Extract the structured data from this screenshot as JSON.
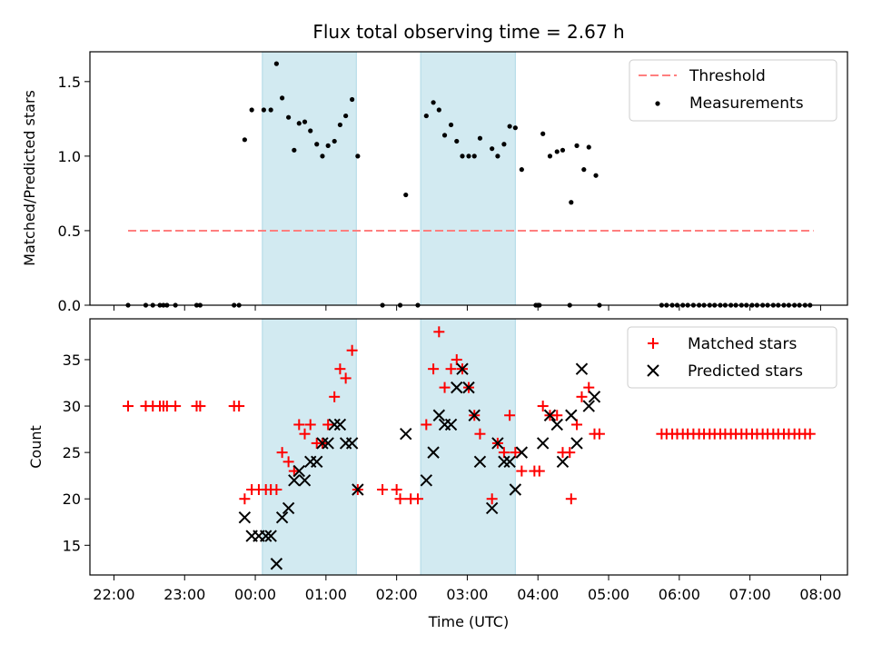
{
  "title": "Flux total observing time = 2.67 h",
  "colors": {
    "threshold": "#ff7f7f",
    "measurement": "#000000",
    "matched": "#ff0000",
    "predicted": "#000000",
    "shade": "#add8e6"
  },
  "chart_data": [
    {
      "type": "scatter",
      "ylabel": "Matched/Predicted stars",
      "ylim": [
        0,
        1.7
      ],
      "yticks": [
        0.0,
        0.5,
        1.0,
        1.5
      ],
      "ytick_labels": [
        "0.0",
        "0.5",
        "1.0",
        "1.5"
      ],
      "xlim": [
        21.66,
        32.38
      ],
      "legend_placement": "top-right",
      "legend": [
        "Threshold",
        "Measurements"
      ],
      "threshold": {
        "name": "Threshold",
        "y": 0.5,
        "x_start": 22.2,
        "x_end": 31.9
      },
      "shaded_spans": [
        [
          24.1,
          25.43
        ],
        [
          26.34,
          27.68
        ]
      ],
      "series": [
        {
          "name": "Measurements",
          "points": [
            [
              22.2,
              0
            ],
            [
              22.45,
              0
            ],
            [
              22.55,
              0
            ],
            [
              22.65,
              0
            ],
            [
              22.7,
              0
            ],
            [
              22.75,
              0
            ],
            [
              22.87,
              0
            ],
            [
              23.17,
              0
            ],
            [
              23.22,
              0
            ],
            [
              23.7,
              0
            ],
            [
              23.77,
              0
            ],
            [
              23.85,
              1.11
            ],
            [
              23.95,
              1.31
            ],
            [
              24.12,
              1.31
            ],
            [
              24.22,
              1.31
            ],
            [
              24.3,
              1.62
            ],
            [
              24.38,
              1.39
            ],
            [
              24.47,
              1.26
            ],
            [
              24.55,
              1.04
            ],
            [
              24.62,
              1.22
            ],
            [
              24.7,
              1.23
            ],
            [
              24.78,
              1.17
            ],
            [
              24.87,
              1.08
            ],
            [
              24.95,
              1.0
            ],
            [
              25.03,
              1.07
            ],
            [
              25.12,
              1.1
            ],
            [
              25.2,
              1.21
            ],
            [
              25.28,
              1.27
            ],
            [
              25.37,
              1.38
            ],
            [
              25.45,
              1.0
            ],
            [
              25.8,
              0
            ],
            [
              26.05,
              0
            ],
            [
              26.13,
              0.74
            ],
            [
              26.3,
              0
            ],
            [
              26.42,
              1.27
            ],
            [
              26.52,
              1.36
            ],
            [
              26.6,
              1.31
            ],
            [
              26.68,
              1.14
            ],
            [
              26.77,
              1.21
            ],
            [
              26.85,
              1.1
            ],
            [
              26.93,
              1.0
            ],
            [
              27.02,
              1.0
            ],
            [
              27.1,
              1.0
            ],
            [
              27.18,
              1.12
            ],
            [
              27.35,
              1.05
            ],
            [
              27.43,
              1.0
            ],
            [
              27.52,
              1.08
            ],
            [
              27.6,
              1.2
            ],
            [
              27.68,
              1.19
            ],
            [
              27.77,
              0.91
            ],
            [
              27.97,
              0
            ],
            [
              28.02,
              0
            ],
            [
              28.0,
              0
            ],
            [
              28.07,
              1.15
            ],
            [
              28.17,
              1.0
            ],
            [
              28.27,
              1.03
            ],
            [
              28.35,
              1.04
            ],
            [
              28.45,
              0
            ],
            [
              28.47,
              0.69
            ],
            [
              28.55,
              1.07
            ],
            [
              28.65,
              0.91
            ],
            [
              28.72,
              1.06
            ],
            [
              28.82,
              0.87
            ],
            [
              28.87,
              0
            ],
            [
              29.75,
              0
            ],
            [
              29.82,
              0
            ],
            [
              29.9,
              0
            ],
            [
              29.97,
              0
            ],
            [
              30.05,
              0
            ],
            [
              30.12,
              0
            ],
            [
              30.2,
              0
            ],
            [
              30.28,
              0
            ],
            [
              30.35,
              0
            ],
            [
              30.43,
              0
            ],
            [
              30.5,
              0
            ],
            [
              30.58,
              0
            ],
            [
              30.65,
              0
            ],
            [
              30.73,
              0
            ],
            [
              30.8,
              0
            ],
            [
              30.88,
              0
            ],
            [
              30.95,
              0
            ],
            [
              31.03,
              0
            ],
            [
              31.1,
              0
            ],
            [
              31.18,
              0
            ],
            [
              31.25,
              0
            ],
            [
              31.33,
              0
            ],
            [
              31.4,
              0
            ],
            [
              31.48,
              0
            ],
            [
              31.55,
              0
            ],
            [
              31.63,
              0
            ],
            [
              31.7,
              0
            ],
            [
              31.78,
              0
            ],
            [
              31.85,
              0
            ]
          ]
        }
      ]
    },
    {
      "type": "scatter",
      "ylabel": "Count",
      "xlabel": "Time (UTC)",
      "ylim": [
        11.8,
        39.4
      ],
      "yticks": [
        15,
        20,
        25,
        30,
        35
      ],
      "ytick_labels": [
        "15",
        "20",
        "25",
        "30",
        "35"
      ],
      "xlim": [
        21.66,
        32.38
      ],
      "xticks": [
        22,
        23,
        24,
        25,
        26,
        27,
        28,
        29,
        30,
        31,
        32
      ],
      "xtick_labels": [
        "22:00",
        "23:00",
        "00:00",
        "01:00",
        "02:00",
        "03:00",
        "04:00",
        "05:00",
        "06:00",
        "07:00",
        "08:00"
      ],
      "legend_placement": "top-right",
      "legend": [
        "Matched stars",
        "Predicted stars"
      ],
      "shaded_spans": [
        [
          24.1,
          25.43
        ],
        [
          26.34,
          27.68
        ]
      ],
      "series": [
        {
          "name": "Matched stars",
          "points": [
            [
              22.2,
              30
            ],
            [
              22.45,
              30
            ],
            [
              22.55,
              30
            ],
            [
              22.65,
              30
            ],
            [
              22.7,
              30
            ],
            [
              22.75,
              30
            ],
            [
              22.87,
              30
            ],
            [
              23.17,
              30
            ],
            [
              23.22,
              30
            ],
            [
              23.7,
              30
            ],
            [
              23.77,
              30
            ],
            [
              23.85,
              20
            ],
            [
              23.95,
              21
            ],
            [
              24.05,
              21
            ],
            [
              24.15,
              21
            ],
            [
              24.22,
              21
            ],
            [
              24.3,
              21
            ],
            [
              24.38,
              25
            ],
            [
              24.47,
              24
            ],
            [
              24.55,
              23
            ],
            [
              24.62,
              28
            ],
            [
              24.7,
              27
            ],
            [
              24.78,
              28
            ],
            [
              24.87,
              26
            ],
            [
              24.95,
              26
            ],
            [
              25.03,
              28
            ],
            [
              25.12,
              31
            ],
            [
              25.2,
              34
            ],
            [
              25.28,
              33
            ],
            [
              25.37,
              36
            ],
            [
              25.45,
              21
            ],
            [
              25.8,
              21
            ],
            [
              26.0,
              21
            ],
            [
              26.05,
              20
            ],
            [
              26.2,
              20
            ],
            [
              26.3,
              20
            ],
            [
              26.42,
              28
            ],
            [
              26.52,
              34
            ],
            [
              26.6,
              38
            ],
            [
              26.68,
              32
            ],
            [
              26.77,
              34
            ],
            [
              26.85,
              35
            ],
            [
              26.93,
              34
            ],
            [
              27.02,
              32
            ],
            [
              27.1,
              29
            ],
            [
              27.18,
              27
            ],
            [
              27.35,
              20
            ],
            [
              27.43,
              26
            ],
            [
              27.52,
              25
            ],
            [
              27.6,
              29
            ],
            [
              27.68,
              25
            ],
            [
              27.77,
              23
            ],
            [
              27.95,
              23
            ],
            [
              28.02,
              23
            ],
            [
              28.07,
              30
            ],
            [
              28.17,
              29
            ],
            [
              28.27,
              29
            ],
            [
              28.35,
              25
            ],
            [
              28.45,
              25
            ],
            [
              28.47,
              20
            ],
            [
              28.55,
              28
            ],
            [
              28.62,
              31
            ],
            [
              28.72,
              32
            ],
            [
              28.8,
              27
            ],
            [
              28.87,
              27
            ],
            [
              29.75,
              27
            ],
            [
              29.82,
              27
            ],
            [
              29.9,
              27
            ],
            [
              29.97,
              27
            ],
            [
              30.05,
              27
            ],
            [
              30.12,
              27
            ],
            [
              30.2,
              27
            ],
            [
              30.28,
              27
            ],
            [
              30.35,
              27
            ],
            [
              30.43,
              27
            ],
            [
              30.5,
              27
            ],
            [
              30.58,
              27
            ],
            [
              30.65,
              27
            ],
            [
              30.73,
              27
            ],
            [
              30.8,
              27
            ],
            [
              30.88,
              27
            ],
            [
              30.95,
              27
            ],
            [
              31.03,
              27
            ],
            [
              31.1,
              27
            ],
            [
              31.18,
              27
            ],
            [
              31.25,
              27
            ],
            [
              31.33,
              27
            ],
            [
              31.4,
              27
            ],
            [
              31.48,
              27
            ],
            [
              31.55,
              27
            ],
            [
              31.63,
              27
            ],
            [
              31.7,
              27
            ],
            [
              31.78,
              27
            ],
            [
              31.85,
              27
            ]
          ]
        },
        {
          "name": "Predicted stars",
          "points": [
            [
              23.85,
              18
            ],
            [
              23.95,
              16
            ],
            [
              24.05,
              16
            ],
            [
              24.15,
              16
            ],
            [
              24.22,
              16
            ],
            [
              24.3,
              13
            ],
            [
              24.38,
              18
            ],
            [
              24.47,
              19
            ],
            [
              24.55,
              22
            ],
            [
              24.62,
              23
            ],
            [
              24.7,
              22
            ],
            [
              24.78,
              24
            ],
            [
              24.87,
              24
            ],
            [
              24.95,
              26
            ],
            [
              25.03,
              26
            ],
            [
              25.12,
              28
            ],
            [
              25.2,
              28
            ],
            [
              25.28,
              26
            ],
            [
              25.37,
              26
            ],
            [
              25.45,
              21
            ],
            [
              26.13,
              27
            ],
            [
              26.42,
              22
            ],
            [
              26.52,
              25
            ],
            [
              26.6,
              29
            ],
            [
              26.68,
              28
            ],
            [
              26.77,
              28
            ],
            [
              26.85,
              32
            ],
            [
              26.93,
              34
            ],
            [
              27.02,
              32
            ],
            [
              27.1,
              29
            ],
            [
              27.18,
              24
            ],
            [
              27.35,
              19
            ],
            [
              27.43,
              26
            ],
            [
              27.52,
              24
            ],
            [
              27.6,
              24
            ],
            [
              27.68,
              21
            ],
            [
              27.77,
              25
            ],
            [
              28.07,
              26
            ],
            [
              28.17,
              29
            ],
            [
              28.27,
              28
            ],
            [
              28.35,
              24
            ],
            [
              28.47,
              29
            ],
            [
              28.55,
              26
            ],
            [
              28.62,
              34
            ],
            [
              28.72,
              30
            ],
            [
              28.8,
              31
            ]
          ]
        }
      ]
    }
  ]
}
